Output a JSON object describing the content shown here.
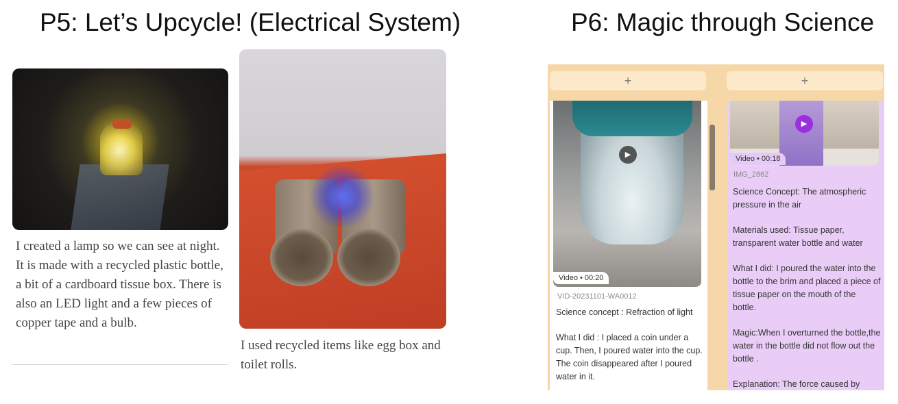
{
  "headings": {
    "p5": "P5: Let’s Upcycle! (Electrical System)",
    "p6": "P6: Magic through Science"
  },
  "p5": {
    "lamp_caption": "I created a lamp so we can see at night. It is made with a recycled plastic bottle, a bit of a cardboard tissue box. There is also an LED light and a few pieces of copper tape and a bulb.",
    "rolls_caption": "I  used recycled items like egg box and toilet rolls."
  },
  "p6": {
    "add_left": "+",
    "add_right": "+",
    "left_card": {
      "badge": "Video • 00:20",
      "filename": "VID-20231101-WA0012",
      "paragraphs": [
        "Science concept : Refraction of light",
        "What I did : I placed a coin under a cup. Then, I poured water into the cup. The coin disappeared after I poured water in it."
      ]
    },
    "right_card": {
      "badge": "Video • 00:18",
      "filename": "IMG_2862",
      "paragraphs": [
        "Science Concept: The atmospheric pressure in the air",
        "Materials used: Tissue paper, transparent water bottle and water",
        "What I did: I poured the water into the bottle to the brim and placed a piece of tissue paper on the mouth of the bottle.",
        "Magic:When I overturned the bottle,the water in the bottle did not flow out the bottle .",
        "Explanation: The force caused by"
      ]
    },
    "icons": {
      "play": "play-icon",
      "add": "plus-icon"
    },
    "colors": {
      "board": "#f6d8a8",
      "right_column": "#e9cdf7",
      "play_button": "#9b2fe0"
    }
  }
}
